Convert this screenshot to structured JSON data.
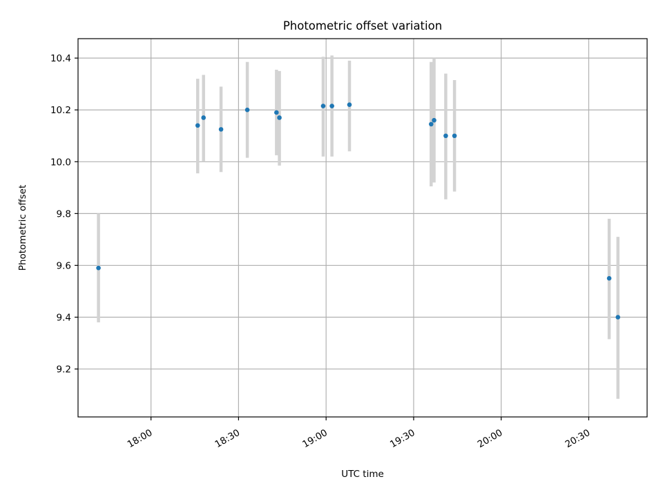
{
  "chart_data": {
    "type": "scatter",
    "title": "Photometric offset variation",
    "xlabel": "UTC time",
    "ylabel": "Photometric offset",
    "xlim": [
      "17:35",
      "20:50"
    ],
    "ylim": [
      9.015,
      10.475
    ],
    "x_ticks": [
      "18:00",
      "18:30",
      "19:00",
      "19:30",
      "20:00",
      "20:30"
    ],
    "y_ticks": [
      9.2,
      9.4,
      9.6,
      9.8,
      10.0,
      10.2,
      10.4
    ],
    "y_tick_labels": [
      "9.2",
      "9.4",
      "9.6",
      "9.8",
      "10.0",
      "10.2",
      "10.4"
    ],
    "grid": true,
    "colors": {
      "points": "#1f77b4",
      "error_bars": "#d3d3d3",
      "grid": "#b0b0b0"
    },
    "points": [
      {
        "x": "17:42",
        "y": 9.59,
        "ylow": 9.38,
        "yhigh": 9.8
      },
      {
        "x": "18:16",
        "y": 10.14,
        "ylow": 9.955,
        "yhigh": 10.32
      },
      {
        "x": "18:18",
        "y": 10.17,
        "ylow": 10.0,
        "yhigh": 10.335
      },
      {
        "x": "18:24",
        "y": 10.125,
        "ylow": 9.96,
        "yhigh": 10.29
      },
      {
        "x": "18:33",
        "y": 10.2,
        "ylow": 10.015,
        "yhigh": 10.385
      },
      {
        "x": "18:43",
        "y": 10.19,
        "ylow": 10.025,
        "yhigh": 10.355
      },
      {
        "x": "18:44",
        "y": 10.17,
        "ylow": 9.985,
        "yhigh": 10.35
      },
      {
        "x": "18:59",
        "y": 10.215,
        "ylow": 10.02,
        "yhigh": 10.405
      },
      {
        "x": "19:02",
        "y": 10.215,
        "ylow": 10.02,
        "yhigh": 10.41
      },
      {
        "x": "19:08",
        "y": 10.22,
        "ylow": 10.04,
        "yhigh": 10.39
      },
      {
        "x": "19:36",
        "y": 10.145,
        "ylow": 9.905,
        "yhigh": 10.385
      },
      {
        "x": "19:37",
        "y": 10.16,
        "ylow": 9.92,
        "yhigh": 10.4
      },
      {
        "x": "19:41",
        "y": 10.1,
        "ylow": 9.855,
        "yhigh": 10.34
      },
      {
        "x": "19:44",
        "y": 10.1,
        "ylow": 9.885,
        "yhigh": 10.315
      },
      {
        "x": "20:37",
        "y": 9.55,
        "ylow": 9.315,
        "yhigh": 9.78
      },
      {
        "x": "20:40",
        "y": 9.4,
        "ylow": 9.085,
        "yhigh": 9.71
      }
    ]
  }
}
